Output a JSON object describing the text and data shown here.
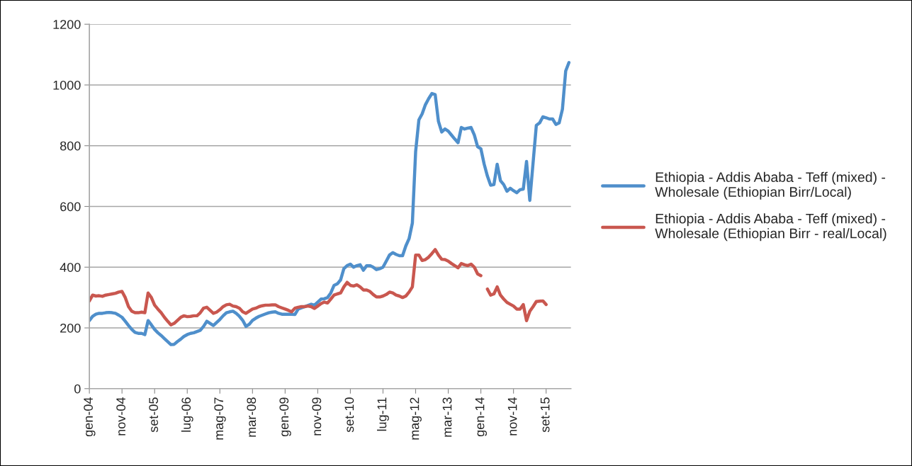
{
  "chart_data": {
    "type": "line",
    "categories": [
      "gen-04",
      null,
      null,
      null,
      null,
      null,
      null,
      null,
      null,
      null,
      "nov-04",
      null,
      null,
      null,
      null,
      null,
      null,
      null,
      null,
      null,
      "set-05",
      null,
      null,
      null,
      null,
      null,
      null,
      null,
      null,
      null,
      "lug-06",
      null,
      null,
      null,
      null,
      null,
      null,
      null,
      null,
      null,
      "mag-07",
      null,
      null,
      null,
      null,
      null,
      null,
      null,
      null,
      null,
      "mar-08",
      null,
      null,
      null,
      null,
      null,
      null,
      null,
      null,
      null,
      "gen-09",
      null,
      null,
      null,
      null,
      null,
      null,
      null,
      null,
      null,
      "nov-09",
      null,
      null,
      null,
      null,
      null,
      null,
      null,
      null,
      null,
      "set-10",
      null,
      null,
      null,
      null,
      null,
      null,
      null,
      null,
      null,
      "lug-11",
      null,
      null,
      null,
      null,
      null,
      null,
      null,
      null,
      null,
      "mag-12",
      null,
      null,
      null,
      null,
      null,
      null,
      null,
      null,
      null,
      "mar-13",
      null,
      null,
      null,
      null,
      null,
      null,
      null,
      null,
      null,
      "gen-14",
      null,
      null,
      null,
      null,
      null,
      null,
      null,
      null,
      null,
      "nov-14",
      null,
      null,
      null,
      null,
      null,
      null,
      null,
      null,
      null,
      "set-15",
      null,
      null,
      null,
      null,
      null,
      null,
      null
    ],
    "series": [
      {
        "name": "Ethiopia - Addis Ababa - Teff (mixed) - Wholesale (Ethiopian Birr/Local)",
        "color": "#4f8fcb",
        "values": [
          224,
          238,
          245,
          248,
          248,
          250,
          251,
          250,
          248,
          242,
          235,
          222,
          208,
          195,
          185,
          182,
          182,
          178,
          224,
          210,
          195,
          184,
          175,
          165,
          155,
          145,
          146,
          155,
          163,
          172,
          178,
          182,
          184,
          188,
          192,
          205,
          222,
          215,
          208,
          218,
          228,
          240,
          250,
          253,
          255,
          248,
          238,
          225,
          205,
          212,
          225,
          232,
          238,
          242,
          246,
          250,
          252,
          253,
          248,
          245,
          245,
          245,
          245,
          244,
          262,
          266,
          270,
          274,
          278,
          275,
          285,
          295,
          296,
          300,
          315,
          340,
          345,
          358,
          395,
          405,
          410,
          400,
          405,
          408,
          390,
          405,
          405,
          400,
          392,
          395,
          400,
          420,
          440,
          448,
          442,
          438,
          438,
          470,
          494,
          545,
          780,
          885,
          905,
          935,
          955,
          972,
          968,
          880,
          845,
          855,
          848,
          835,
          822,
          810,
          860,
          855,
          858,
          860,
          835,
          797,
          790,
          740,
          700,
          670,
          672,
          739,
          685,
          672,
          650,
          660,
          652,
          645,
          655,
          657,
          748,
          620,
          743,
          867,
          875,
          895,
          892,
          888,
          888,
          870,
          875,
          920,
          1046,
          1074
        ]
      },
      {
        "name": "Ethiopia - Addis Ababa - Teff (mixed) - Wholesale (Ethiopian Birr - real/Local)",
        "color": "#c9574f",
        "values": [
          289,
          308,
          305,
          306,
          304,
          308,
          310,
          312,
          314,
          318,
          320,
          300,
          270,
          255,
          250,
          250,
          252,
          250,
          315,
          300,
          275,
          262,
          250,
          235,
          222,
          210,
          215,
          225,
          235,
          240,
          237,
          238,
          240,
          240,
          250,
          265,
          268,
          258,
          248,
          252,
          260,
          270,
          276,
          278,
          272,
          270,
          265,
          253,
          248,
          255,
          262,
          265,
          270,
          273,
          275,
          275,
          276,
          276,
          270,
          266,
          262,
          258,
          253,
          265,
          268,
          270,
          270,
          272,
          270,
          264,
          272,
          280,
          285,
          282,
          295,
          308,
          312,
          315,
          335,
          350,
          340,
          338,
          342,
          335,
          325,
          325,
          320,
          310,
          302,
          302,
          305,
          310,
          318,
          315,
          308,
          305,
          300,
          305,
          318,
          335,
          440,
          440,
          422,
          425,
          433,
          445,
          458,
          440,
          426,
          425,
          420,
          412,
          405,
          398,
          412,
          408,
          405,
          410,
          400,
          378,
          372,
          null,
          328,
          308,
          312,
          335,
          308,
          295,
          284,
          278,
          272,
          262,
          262,
          277,
          224,
          255,
          270,
          287,
          288,
          289,
          277,
          null,
          null,
          null,
          null,
          null,
          null,
          null
        ]
      }
    ],
    "ylim": [
      0,
      1200
    ],
    "yticks": [
      0,
      200,
      400,
      600,
      800,
      1000,
      1200
    ],
    "grid": "y",
    "legend": "right",
    "marker": "none",
    "line_style": "solid"
  }
}
